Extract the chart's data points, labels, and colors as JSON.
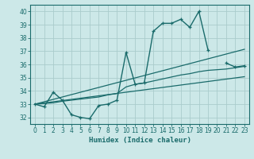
{
  "xlabel": "Humidex (Indice chaleur)",
  "x": [
    0,
    1,
    2,
    3,
    4,
    5,
    6,
    7,
    8,
    9,
    10,
    11,
    12,
    13,
    14,
    15,
    16,
    17,
    18,
    19,
    20,
    21,
    22,
    23
  ],
  "y_main": [
    33.0,
    32.8,
    33.9,
    33.3,
    32.2,
    32.0,
    31.9,
    32.9,
    33.0,
    33.3,
    36.9,
    34.5,
    34.6,
    38.5,
    39.1,
    39.1,
    39.4,
    38.8,
    40.0,
    37.1,
    null,
    36.1,
    35.8,
    35.9
  ],
  "y_line1": [
    33.0,
    33.18,
    33.36,
    33.54,
    33.72,
    33.9,
    34.08,
    34.26,
    34.44,
    34.62,
    34.8,
    34.98,
    35.16,
    35.34,
    35.52,
    35.7,
    35.88,
    36.06,
    36.24,
    36.42,
    36.6,
    36.78,
    36.96,
    37.14
  ],
  "y_line2": [
    33.0,
    33.09,
    33.18,
    33.27,
    33.36,
    33.45,
    33.54,
    33.63,
    33.72,
    33.81,
    33.9,
    33.99,
    34.08,
    34.17,
    34.26,
    34.35,
    34.44,
    34.53,
    34.62,
    34.71,
    34.8,
    34.89,
    34.98,
    35.07
  ],
  "y_line3": [
    33.0,
    33.05,
    33.1,
    33.22,
    33.3,
    33.38,
    33.46,
    33.54,
    33.7,
    33.8,
    34.3,
    34.5,
    34.6,
    34.75,
    34.9,
    35.05,
    35.2,
    35.3,
    35.45,
    35.55,
    35.6,
    35.65,
    35.75,
    35.85
  ],
  "bg_color": "#cce8e8",
  "grid_color": "#aacccc",
  "line_color": "#1a6b6b",
  "ylim": [
    31.5,
    40.5
  ],
  "xlim": [
    -0.5,
    23.5
  ],
  "yticks": [
    32,
    33,
    34,
    35,
    36,
    37,
    38,
    39,
    40
  ],
  "xticks": [
    0,
    1,
    2,
    3,
    4,
    5,
    6,
    7,
    8,
    9,
    10,
    11,
    12,
    13,
    14,
    15,
    16,
    17,
    18,
    19,
    20,
    21,
    22,
    23
  ]
}
